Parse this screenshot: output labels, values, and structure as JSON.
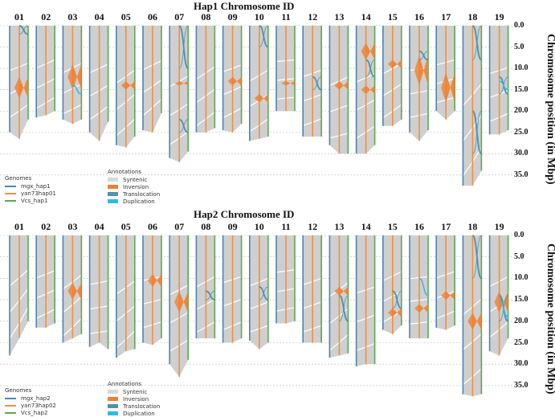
{
  "colors": {
    "genome1": "#4a86b8",
    "genome2": "#f0923a",
    "genome3": "#5aaa50",
    "syntenic": "#cfcfcf",
    "inversion": "#f08030",
    "translocation": "#4f90b0",
    "duplication": "#30b8e8"
  },
  "y_ticks": [
    "0.0",
    "5.0",
    "10.0",
    "15.0",
    "20.0",
    "25.0",
    "30.0",
    "35.0"
  ],
  "chart_data": [
    {
      "type": "synteny",
      "title": "Hap1 Chromosome ID",
      "ylabel": "Chromosome position (in Mbp)",
      "ylim": [
        0,
        37.5
      ],
      "grid": true,
      "chromosomes": [
        "01",
        "02",
        "03",
        "04",
        "05",
        "06",
        "07",
        "08",
        "09",
        "10",
        "11",
        "12",
        "13",
        "14",
        "15",
        "16",
        "17",
        "18",
        "19"
      ],
      "genomes": [
        "mgx_hap1",
        "yan73hap01",
        "Vcs_hap1"
      ],
      "lengths_mbp": [
        [
          25,
          26.5,
          22
        ],
        [
          21.5,
          21,
          20
        ],
        [
          22,
          23,
          22
        ],
        [
          25,
          27,
          22.5
        ],
        [
          28,
          28.5,
          26
        ],
        [
          24.5,
          25,
          20.5
        ],
        [
          31,
          32,
          29.5
        ],
        [
          25,
          25,
          24
        ],
        [
          24.5,
          25,
          23
        ],
        [
          27,
          26.5,
          26
        ],
        [
          20,
          20,
          20
        ],
        [
          26,
          26,
          26
        ],
        [
          28,
          30,
          30
        ],
        [
          30,
          30,
          28
        ],
        [
          23.5,
          23.5,
          22
        ],
        [
          25,
          27,
          24.5
        ],
        [
          20,
          22,
          20
        ],
        [
          37.5,
          37.5,
          34
        ],
        [
          25.5,
          25.5,
          24.5
        ]
      ],
      "inversions": [
        [
          0,
          12,
          17
        ],
        [
          2,
          9,
          15
        ],
        [
          4,
          13,
          15
        ],
        [
          6,
          13,
          14
        ],
        [
          8,
          12,
          14
        ],
        [
          9,
          16,
          18
        ],
        [
          10,
          13,
          14
        ],
        [
          12,
          13,
          15
        ],
        [
          13,
          4,
          8
        ],
        [
          13,
          14,
          16
        ],
        [
          14,
          8,
          10
        ],
        [
          15,
          7,
          14
        ],
        [
          16,
          11,
          18
        ]
      ],
      "translocations": [
        [
          0,
          0,
          2
        ],
        [
          6,
          0,
          10
        ],
        [
          6,
          22,
          25
        ],
        [
          9,
          0,
          5
        ],
        [
          11,
          12,
          15
        ],
        [
          13,
          8,
          12
        ],
        [
          15,
          6,
          8
        ],
        [
          17,
          0,
          8
        ],
        [
          17,
          20,
          30
        ],
        [
          18,
          12,
          16
        ]
      ],
      "duplications": [
        [
          2,
          14,
          16
        ],
        [
          18,
          13,
          15
        ]
      ],
      "legend": {
        "genomes_title": "Genomes",
        "annotations_title": "Annotations",
        "annotations": [
          "Syntenic",
          "Inversion",
          "Translocation",
          "Duplication"
        ]
      }
    },
    {
      "type": "synteny",
      "title": "Hap2  Chromosome ID",
      "ylabel": "Chromosome position (in Mbp)",
      "ylim": [
        0,
        37.5
      ],
      "grid": true,
      "chromosomes": [
        "01",
        "02",
        "03",
        "04",
        "05",
        "06",
        "07",
        "08",
        "09",
        "10",
        "11",
        "12",
        "13",
        "14",
        "15",
        "16",
        "17",
        "18",
        "19"
      ],
      "genomes": [
        "mgx_hap2",
        "yan73hap02",
        "Vcs_hap2"
      ],
      "lengths_mbp": [
        [
          28,
          24,
          20
        ],
        [
          21.5,
          21.5,
          20.5
        ],
        [
          25,
          24,
          23
        ],
        [
          26,
          25,
          26.5
        ],
        [
          28.5,
          27,
          26.5
        ],
        [
          25,
          25.5,
          24
        ],
        [
          30,
          33,
          29
        ],
        [
          24,
          24,
          24
        ],
        [
          25,
          25,
          24
        ],
        [
          24.5,
          26.5,
          25
        ],
        [
          20.5,
          20.5,
          20
        ],
        [
          25,
          25,
          25
        ],
        [
          28.5,
          28,
          27.5
        ],
        [
          30.5,
          30,
          30
        ],
        [
          22,
          23,
          21
        ],
        [
          24,
          24,
          24
        ],
        [
          21.5,
          22,
          21
        ],
        [
          37,
          37.5,
          37
        ],
        [
          27,
          28,
          24
        ]
      ],
      "inversions": [
        [
          2,
          11,
          15
        ],
        [
          5,
          9,
          12
        ],
        [
          6,
          13,
          18
        ],
        [
          12,
          12,
          14
        ],
        [
          14,
          17,
          19
        ],
        [
          15,
          16,
          18
        ],
        [
          16,
          13,
          15
        ],
        [
          17,
          18,
          22
        ],
        [
          18,
          13,
          18
        ]
      ],
      "translocations": [
        [
          7,
          13,
          15
        ],
        [
          9,
          12,
          15
        ],
        [
          12,
          14,
          20
        ],
        [
          14,
          13,
          17
        ],
        [
          17,
          0,
          10
        ],
        [
          18,
          14,
          20
        ]
      ],
      "duplications": [
        [
          18,
          15,
          19
        ],
        [
          15,
          10,
          14
        ]
      ],
      "legend": {
        "genomes_title": "Genomes",
        "annotations_title": "Annotations",
        "annotations": [
          "Syntenic",
          "Inversion",
          "Translocation",
          "Duplication"
        ]
      }
    }
  ]
}
